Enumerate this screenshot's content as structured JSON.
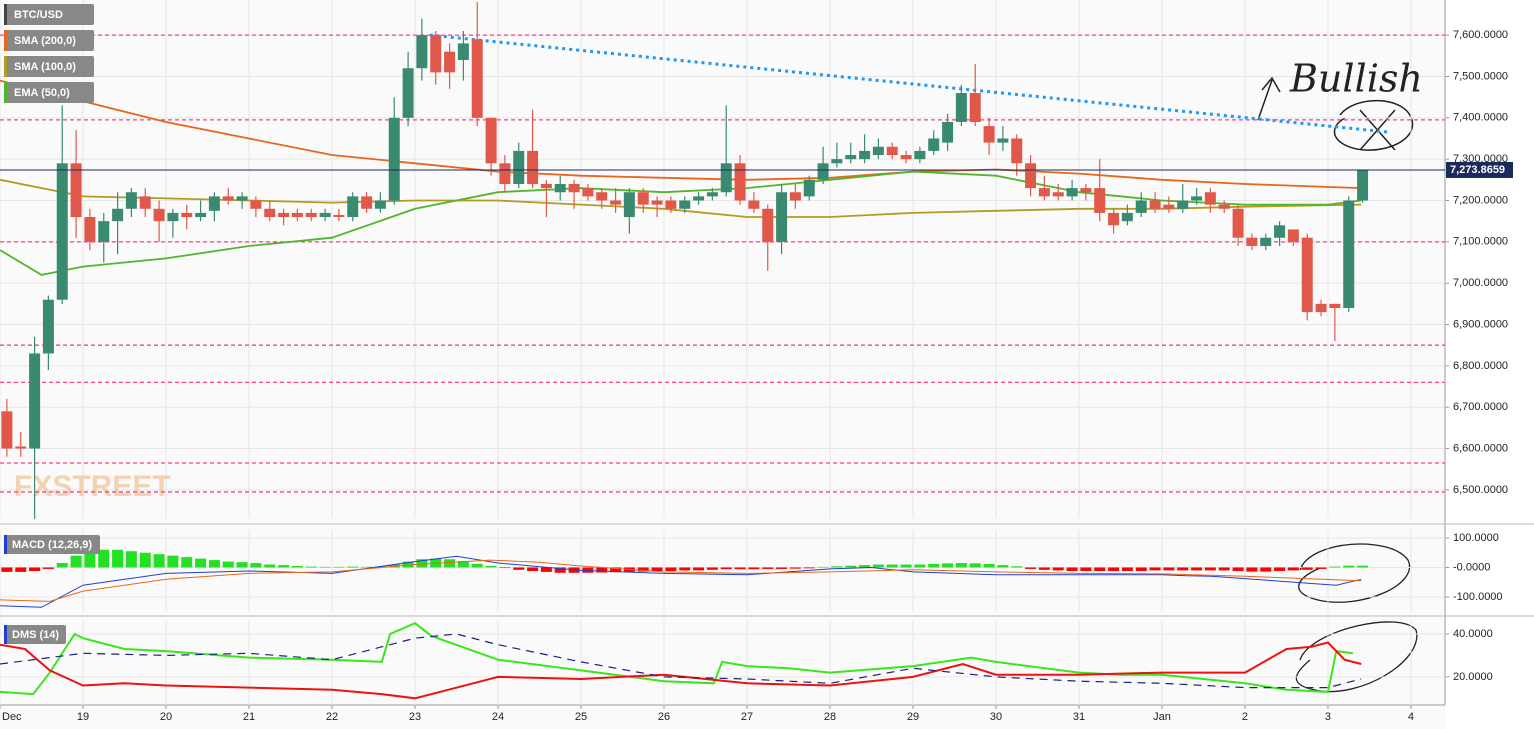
{
  "chart_data": [
    {
      "type": "candlestick",
      "name": "BTC/USD",
      "up_color": "#3a8a72",
      "down_color": "#e0584a",
      "xlim": [
        0,
        17.41
      ],
      "ylim": [
        6432,
        7685
      ],
      "yticks": [
        {
          "value": 6500,
          "label": "6,500.0000"
        },
        {
          "value": 6600,
          "label": "6,600.0000"
        },
        {
          "value": 6700,
          "label": "6,700.0000"
        },
        {
          "value": 6800,
          "label": "6,800.0000"
        },
        {
          "value": 6900,
          "label": "6,900.0000"
        },
        {
          "value": 7000,
          "label": "7,000.0000"
        },
        {
          "value": 7100,
          "label": "7,100.0000"
        },
        {
          "value": 7200,
          "label": "7,200.0000"
        },
        {
          "value": 7300,
          "label": "7,300.0000"
        },
        {
          "value": 7400,
          "label": "7,400.0000"
        },
        {
          "value": 7500,
          "label": "7,500.0000"
        },
        {
          "value": 7600,
          "label": "7,600.0000"
        }
      ],
      "x": [
        0.083,
        0.25,
        0.417,
        0.583,
        0.75,
        0.917,
        1.083,
        1.25,
        1.417,
        1.583,
        1.75,
        1.917,
        2.083,
        2.25,
        2.417,
        2.583,
        2.75,
        2.917,
        3.083,
        3.25,
        3.417,
        3.583,
        3.75,
        3.917,
        4.083,
        4.25,
        4.417,
        4.583,
        4.75,
        4.917,
        5.083,
        5.25,
        5.417,
        5.583,
        5.75,
        5.917,
        6.083,
        6.25,
        6.417,
        6.583,
        6.75,
        6.917,
        7.083,
        7.25,
        7.417,
        7.583,
        7.75,
        7.917,
        8.083,
        8.25,
        8.417,
        8.583,
        8.75,
        8.917,
        9.083,
        9.25,
        9.417,
        9.583,
        9.75,
        9.917,
        10.083,
        10.25,
        10.417,
        10.583,
        10.75,
        10.917,
        11.083,
        11.25,
        11.417,
        11.583,
        11.75,
        11.917,
        12.083,
        12.25,
        12.417,
        12.583,
        12.75,
        12.917,
        13.083,
        13.25,
        13.417,
        13.583,
        13.75,
        13.917,
        14.083,
        14.25,
        14.417,
        14.583,
        14.75,
        14.917,
        15.083,
        15.25,
        15.417,
        15.583,
        15.75,
        15.917,
        16.083,
        16.25,
        16.417
      ],
      "open": [
        6690,
        6605,
        6600,
        6830,
        6960,
        7290,
        7160,
        7100,
        7150,
        7180,
        7210,
        7180,
        7150,
        7170,
        7160,
        7175,
        7210,
        7200,
        7200,
        7180,
        7170,
        7170,
        7170,
        7160,
        7165,
        7160,
        7210,
        7180,
        7200,
        7400,
        7520,
        7600,
        7560,
        7540,
        7590,
        7400,
        7290,
        7240,
        7320,
        7240,
        7220,
        7240,
        7230,
        7220,
        7200,
        7160,
        7220,
        7200,
        7200,
        7180,
        7200,
        7210,
        7220,
        7290,
        7200,
        7180,
        7100,
        7220,
        7210,
        7250,
        7290,
        7300,
        7300,
        7310,
        7330,
        7310,
        7300,
        7320,
        7340,
        7390,
        7460,
        7380,
        7340,
        7350,
        7290,
        7230,
        7220,
        7210,
        7230,
        7230,
        7170,
        7150,
        7170,
        7200,
        7190,
        7180,
        7200,
        7220,
        7190,
        7180,
        7110,
        7090,
        7110,
        7130,
        7110,
        6950,
        6950,
        6940,
        7200
      ],
      "high": [
        6720,
        6640,
        6870,
        6970,
        7430,
        7370,
        7180,
        7170,
        7220,
        7230,
        7230,
        7200,
        7180,
        7190,
        7200,
        7220,
        7230,
        7220,
        7210,
        7200,
        7180,
        7180,
        7180,
        7180,
        7180,
        7220,
        7220,
        7220,
        7450,
        7560,
        7640,
        7610,
        7580,
        7610,
        7680,
        7400,
        7310,
        7340,
        7420,
        7250,
        7260,
        7250,
        7240,
        7230,
        7230,
        7230,
        7230,
        7210,
        7210,
        7210,
        7220,
        7230,
        7430,
        7310,
        7220,
        7190,
        7240,
        7240,
        7260,
        7330,
        7340,
        7340,
        7360,
        7350,
        7340,
        7320,
        7330,
        7370,
        7410,
        7480,
        7530,
        7400,
        7380,
        7360,
        7310,
        7260,
        7240,
        7250,
        7240,
        7300,
        7180,
        7190,
        7220,
        7220,
        7210,
        7240,
        7230,
        7230,
        7200,
        7190,
        7120,
        7120,
        7150,
        7130,
        7120,
        6960,
        6950,
        7210,
        7275
      ],
      "low": [
        6580,
        6580,
        6430,
        6790,
        6950,
        7110,
        7080,
        7050,
        7070,
        7160,
        7160,
        7100,
        7110,
        7130,
        7150,
        7150,
        7190,
        7180,
        7160,
        7150,
        7140,
        7150,
        7150,
        7150,
        7150,
        7150,
        7170,
        7170,
        7190,
        7380,
        7490,
        7480,
        7470,
        7490,
        7380,
        7260,
        7220,
        7230,
        7230,
        7160,
        7200,
        7180,
        7200,
        7180,
        7170,
        7120,
        7170,
        7160,
        7170,
        7170,
        7190,
        7200,
        7210,
        7190,
        7170,
        7030,
        7070,
        7180,
        7200,
        7240,
        7280,
        7290,
        7290,
        7300,
        7300,
        7290,
        7290,
        7310,
        7320,
        7380,
        7380,
        7310,
        7320,
        7260,
        7210,
        7200,
        7200,
        7200,
        7200,
        7150,
        7120,
        7140,
        7160,
        7170,
        7170,
        7170,
        7190,
        7170,
        7170,
        7090,
        7080,
        7080,
        7090,
        7090,
        6910,
        6920,
        6860,
        6930,
        7195
      ],
      "close": [
        6600,
        6600,
        6830,
        6960,
        7290,
        7160,
        7100,
        7150,
        7180,
        7220,
        7180,
        7150,
        7170,
        7160,
        7170,
        7210,
        7200,
        7210,
        7180,
        7160,
        7160,
        7160,
        7160,
        7170,
        7160,
        7210,
        7180,
        7200,
        7400,
        7520,
        7600,
        7510,
        7510,
        7580,
        7400,
        7290,
        7240,
        7320,
        7240,
        7230,
        7240,
        7220,
        7210,
        7200,
        7190,
        7220,
        7190,
        7190,
        7180,
        7200,
        7210,
        7220,
        7290,
        7200,
        7180,
        7100,
        7220,
        7200,
        7250,
        7290,
        7300,
        7310,
        7320,
        7330,
        7310,
        7300,
        7320,
        7350,
        7390,
        7460,
        7390,
        7340,
        7350,
        7290,
        7230,
        7210,
        7210,
        7230,
        7220,
        7170,
        7140,
        7170,
        7200,
        7180,
        7180,
        7200,
        7210,
        7190,
        7180,
        7110,
        7090,
        7110,
        7140,
        7100,
        6930,
        6930,
        6940,
        7200,
        7273.8659
      ],
      "series": [
        {
          "name": "SMA (200,0)",
          "color": "#e8661b",
          "x": [
            0,
            1,
            2,
            3,
            4,
            5,
            6,
            7,
            8,
            9,
            10,
            11,
            12,
            13,
            14,
            15,
            16.4
          ],
          "values": [
            7490,
            7440,
            7390,
            7350,
            7310,
            7290,
            7270,
            7260,
            7255,
            7250,
            7255,
            7270,
            7275,
            7265,
            7250,
            7240,
            7230
          ]
        },
        {
          "name": "SMA (100,0)",
          "color": "#b39b22",
          "x": [
            0,
            1,
            2,
            3,
            4,
            5,
            6,
            7,
            8,
            9,
            10,
            11,
            12,
            13,
            14,
            15,
            16.4
          ],
          "values": [
            7250,
            7210,
            7205,
            7200,
            7195,
            7200,
            7200,
            7190,
            7180,
            7160,
            7160,
            7170,
            7175,
            7180,
            7180,
            7185,
            7190
          ]
        },
        {
          "name": "EMA (50,0)",
          "color": "#52b52a",
          "x": [
            0,
            0.5,
            1,
            2,
            3,
            4,
            5,
            6,
            7,
            8,
            9,
            10,
            11,
            12,
            13,
            14,
            15,
            16,
            16.4
          ],
          "values": [
            7080,
            7020,
            7040,
            7060,
            7090,
            7110,
            7180,
            7220,
            7230,
            7220,
            7230,
            7250,
            7270,
            7260,
            7220,
            7200,
            7190,
            7190,
            7200
          ]
        }
      ],
      "hlines": [
        7600,
        7395,
        7100,
        6850,
        6760,
        6565,
        6495
      ],
      "hline_color": "#ff3c8e",
      "trendline": {
        "x": [
          5.18,
          16.75
        ],
        "values": [
          7600,
          7365
        ],
        "color": "#2196f3"
      },
      "last_price": {
        "value": 7273.8659,
        "label": "7,273.8659"
      },
      "annotation": "Bullish",
      "watermark": "FXSTREET"
    },
    {
      "type": "macd",
      "title": "MACD (12,26,9)",
      "xlim": [
        0,
        17.41
      ],
      "ylim": [
        -151,
        127
      ],
      "yticks": [
        {
          "value": 100,
          "label": "100.0000"
        },
        {
          "value": 0,
          "label": "-0.0000"
        },
        {
          "value": -100,
          "label": "-100.0000"
        }
      ],
      "histogram": {
        "up_color": "#22e022",
        "down_color": "#ff0000",
        "values": [
          -15,
          -15,
          -12,
          -5,
          15,
          40,
          55,
          60,
          60,
          55,
          50,
          45,
          40,
          35,
          30,
          25,
          20,
          18,
          15,
          10,
          8,
          5,
          3,
          2,
          2,
          3,
          2,
          3,
          10,
          20,
          28,
          30,
          28,
          22,
          12,
          5,
          -2,
          -8,
          -12,
          -15,
          -18,
          -18,
          -18,
          -17,
          -16,
          -15,
          -14,
          -12,
          -12,
          -10,
          -10,
          -8,
          -6,
          -6,
          -6,
          -5,
          -5,
          -4,
          -3,
          2,
          4,
          6,
          8,
          10,
          10,
          10,
          10,
          12,
          14,
          15,
          14,
          12,
          8,
          4,
          -5,
          -8,
          -10,
          -12,
          -12,
          -12,
          -12,
          -12,
          -12,
          -10,
          -10,
          -10,
          -10,
          -10,
          -10,
          -12,
          -14,
          -14,
          -12,
          -10,
          -8,
          -5,
          3,
          6,
          6
        ]
      },
      "series": [
        {
          "color": "#1f3fd0",
          "x": [
            0,
            0.5,
            1,
            2,
            3,
            4,
            5,
            5.5,
            6,
            7,
            8,
            9,
            10,
            10.5,
            11,
            12,
            13,
            14,
            14.3,
            14.6,
            16.1,
            16.4
          ],
          "values": [
            -130,
            -135,
            -60,
            -20,
            -12,
            -20,
            20,
            38,
            15,
            -10,
            -20,
            -25,
            -5,
            0,
            -15,
            -25,
            -25,
            -25,
            -28,
            -30,
            -60,
            -40
          ]
        },
        {
          "color": "#e8661b",
          "x": [
            0,
            0.6,
            1,
            2,
            3,
            4,
            5,
            5.9,
            6.5,
            7,
            8,
            9,
            10,
            11,
            12,
            13,
            14,
            15,
            16.4
          ],
          "values": [
            -110,
            -115,
            -80,
            -40,
            -20,
            -15,
            10,
            25,
            18,
            5,
            -15,
            -20,
            -15,
            -8,
            -15,
            -20,
            -22,
            -30,
            -45
          ]
        }
      ]
    },
    {
      "type": "dms",
      "title": "DMS (14)",
      "xlim": [
        0,
        17.41
      ],
      "ylim": [
        6.9,
        46.5
      ],
      "yticks": [
        {
          "value": 40,
          "label": "40.0000"
        },
        {
          "value": 20,
          "label": "20.0000"
        }
      ],
      "xticks": [
        {
          "value": 0,
          "label": "Dec"
        },
        {
          "value": 1,
          "label": "19"
        },
        {
          "value": 2,
          "label": "20"
        },
        {
          "value": 3,
          "label": "21"
        },
        {
          "value": 4,
          "label": "22"
        },
        {
          "value": 5,
          "label": "23"
        },
        {
          "value": 6,
          "label": "24"
        },
        {
          "value": 7,
          "label": "25"
        },
        {
          "value": 8,
          "label": "26"
        },
        {
          "value": 9,
          "label": "27"
        },
        {
          "value": 10,
          "label": "28"
        },
        {
          "value": 11,
          "label": "29"
        },
        {
          "value": 12,
          "label": "30"
        },
        {
          "value": 13,
          "label": "31"
        },
        {
          "value": 14,
          "label": "Jan"
        },
        {
          "value": 15,
          "label": "2"
        },
        {
          "value": 16,
          "label": "3"
        },
        {
          "value": 17,
          "label": "4"
        }
      ],
      "series": [
        {
          "color": "#39e61c",
          "x": [
            0,
            0.4,
            0.6,
            0.9,
            1,
            1.5,
            2,
            3,
            4,
            4.6,
            4.7,
            5,
            5.2,
            6,
            7,
            8,
            8.6,
            8.7,
            9,
            9.5,
            10,
            11,
            11.7,
            12,
            13,
            13.5,
            14,
            14.5,
            15,
            15.5,
            16,
            16.1,
            16.3
          ],
          "values": [
            13,
            12,
            22,
            40,
            38,
            33,
            32,
            29,
            28,
            27,
            40,
            45,
            39,
            28,
            23,
            18,
            17,
            27,
            25,
            24,
            22,
            25,
            29,
            27,
            22,
            21,
            21,
            19,
            17,
            14,
            13,
            32,
            31
          ]
        },
        {
          "color": "#ee1111",
          "x": [
            0,
            0.3,
            0.6,
            1,
            1.5,
            2,
            3,
            4,
            4.6,
            5,
            5.4,
            5.8,
            6,
            7,
            8,
            9,
            10,
            11,
            11.6,
            12,
            13,
            14,
            15,
            15.5,
            15.8,
            16,
            16.2,
            16.4
          ],
          "values": [
            35,
            33,
            23,
            16,
            17,
            16,
            15,
            14,
            12,
            10,
            14,
            18,
            20,
            19,
            21,
            17,
            16,
            20,
            26,
            21,
            21,
            22,
            22,
            33,
            34,
            36,
            28,
            26
          ]
        },
        {
          "color": "#1a237e",
          "dashed": true,
          "x": [
            0,
            1,
            2,
            3,
            4,
            5,
            5.5,
            6,
            7,
            8,
            9,
            10,
            11,
            12,
            13,
            14,
            15,
            16,
            16.4
          ],
          "values": [
            26,
            31,
            30,
            31,
            28,
            38,
            40,
            35,
            27,
            20,
            19,
            17,
            24,
            20,
            18,
            17,
            15,
            15,
            19
          ]
        }
      ]
    }
  ]
}
